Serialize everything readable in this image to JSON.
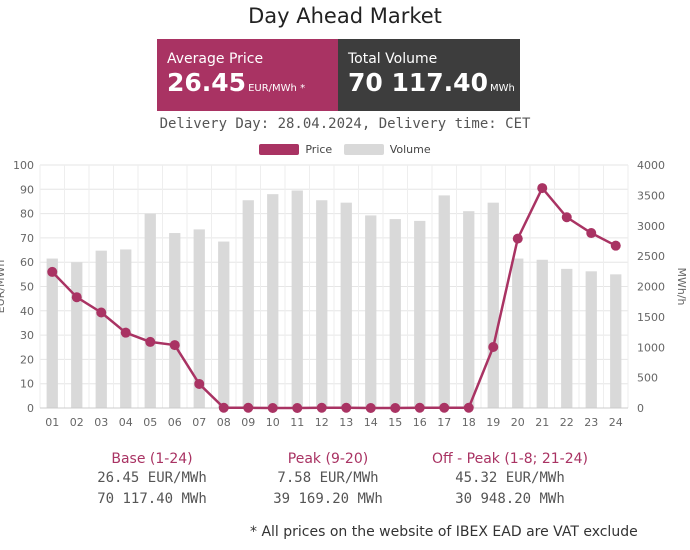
{
  "title": "Day Ahead Market",
  "summary": {
    "average_label": "Average Price",
    "average_value": "26.45",
    "average_unit": "EUR/MWh *",
    "volume_label": "Total Volume",
    "volume_value": "70 117.40",
    "volume_unit": "MWh"
  },
  "delivery": "Delivery Day: 28.04.2024, Delivery time: CET",
  "colors": {
    "price": "#a93363",
    "volume": "#d9d9d9",
    "average_box": "#a93363",
    "volume_box": "#3d3d3d",
    "stat_heading": "#a93363"
  },
  "chart_data": {
    "type": "bar",
    "title": "",
    "legend": [
      "Price",
      "Volume"
    ],
    "legend_position": "top",
    "categories": [
      "01",
      "02",
      "03",
      "04",
      "05",
      "06",
      "07",
      "08",
      "09",
      "10",
      "11",
      "12",
      "13",
      "14",
      "15",
      "16",
      "17",
      "18",
      "19",
      "20",
      "21",
      "22",
      "23",
      "24"
    ],
    "series": [
      {
        "name": "Volume",
        "type": "bar",
        "axis": "right",
        "values": [
          2460,
          2400,
          2590,
          2610,
          3200,
          2880,
          2940,
          2740,
          3420,
          3520,
          3580,
          3420,
          3380,
          3170,
          3110,
          3080,
          3500,
          3240,
          3380,
          2460,
          2440,
          2290,
          2250,
          2200
        ]
      },
      {
        "name": "Price",
        "type": "line",
        "axis": "left",
        "values": [
          56.0,
          45.6,
          39.3,
          31.0,
          27.2,
          25.9,
          9.9,
          0.1,
          0.1,
          0.0,
          0.0,
          0.1,
          0.1,
          0.0,
          0.0,
          0.1,
          0.1,
          0.1,
          25.1,
          69.7,
          90.5,
          78.5,
          72.0,
          66.8
        ]
      }
    ],
    "y_left": {
      "label": "EUR/MWh",
      "ylim": [
        0,
        100
      ],
      "ticks": [
        "0",
        "10",
        "20",
        "30",
        "40",
        "50",
        "60",
        "70",
        "80",
        "90",
        "100"
      ]
    },
    "y_right": {
      "label": "MWh/h",
      "ylim": [
        0,
        4000
      ],
      "ticks": [
        "0",
        "500",
        "1000",
        "1500",
        "2000",
        "2500",
        "3000",
        "3500",
        "4000"
      ]
    },
    "grid": true
  },
  "stats": [
    {
      "heading": "Base (1-24)",
      "price": "26.45 EUR/MWh",
      "volume": "70 117.40 MWh"
    },
    {
      "heading": "Peak (9-20)",
      "price": "7.58 EUR/MWh",
      "volume": "39 169.20 MWh"
    },
    {
      "heading": "Off - Peak (1-8; 21-24)",
      "price": "45.32 EUR/MWh",
      "volume": "30 948.20 MWh"
    }
  ],
  "footnote": "* All prices on the website of IBEX EAD are VAT exclude"
}
